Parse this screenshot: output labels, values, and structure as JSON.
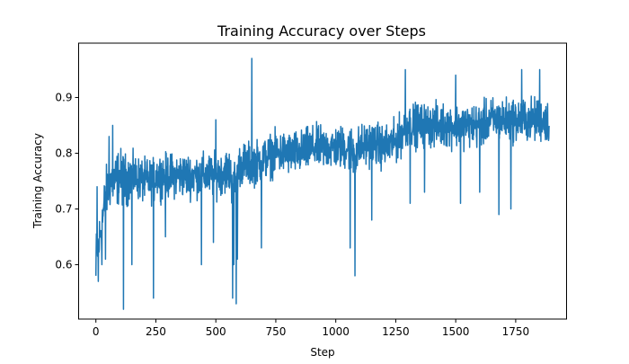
{
  "chart_data": {
    "type": "line",
    "title": "Training Accuracy over Steps",
    "xlabel": "Step",
    "ylabel": "Training Accuracy",
    "xlim": [
      -72,
      1962
    ],
    "ylim": [
      0.5025,
      0.9975
    ],
    "xticks": [
      0,
      250,
      500,
      750,
      1000,
      1250,
      1500,
      1750
    ],
    "yticks": [
      0.6,
      0.7,
      0.8,
      0.9
    ],
    "xtick_labels": [
      "0",
      "250",
      "500",
      "750",
      "1000",
      "1250",
      "1500",
      "1750"
    ],
    "ytick_labels": [
      "0.6",
      "0.7",
      "0.8",
      "0.9"
    ],
    "grid": false,
    "line_color": "#1f77b4",
    "series": [
      {
        "x": [
          0,
          10,
          20,
          30,
          40,
          50,
          60,
          80,
          100,
          120,
          150,
          200,
          240,
          250,
          300,
          350,
          400,
          450,
          500,
          550,
          580,
          590,
          600,
          650,
          700,
          750,
          800,
          850,
          900,
          950,
          1000,
          1050,
          1080,
          1100,
          1150,
          1200,
          1250,
          1300,
          1350,
          1400,
          1450,
          1500,
          1550,
          1600,
          1650,
          1700,
          1750,
          1800,
          1850,
          1880,
          1890
        ],
        "y": [
          0.62,
          0.63,
          0.66,
          0.69,
          0.72,
          0.74,
          0.75,
          0.75,
          0.76,
          0.75,
          0.76,
          0.75,
          0.75,
          0.76,
          0.76,
          0.76,
          0.76,
          0.76,
          0.76,
          0.77,
          0.74,
          0.76,
          0.78,
          0.78,
          0.79,
          0.8,
          0.8,
          0.8,
          0.81,
          0.81,
          0.81,
          0.81,
          0.8,
          0.81,
          0.82,
          0.81,
          0.82,
          0.85,
          0.85,
          0.85,
          0.85,
          0.85,
          0.85,
          0.85,
          0.86,
          0.86,
          0.86,
          0.86,
          0.86,
          0.86,
          0.85
        ],
        "noise_band": [
          0.04,
          0.05,
          0.05,
          0.05,
          0.05,
          0.05,
          0.05,
          0.05,
          0.05,
          0.05,
          0.04,
          0.04,
          0.04,
          0.04,
          0.04,
          0.04,
          0.04,
          0.04,
          0.04,
          0.04,
          0.05,
          0.04,
          0.04,
          0.04,
          0.04,
          0.04,
          0.04,
          0.04,
          0.04,
          0.04,
          0.04,
          0.04,
          0.05,
          0.04,
          0.04,
          0.04,
          0.04,
          0.04,
          0.04,
          0.04,
          0.04,
          0.04,
          0.04,
          0.04,
          0.04,
          0.04,
          0.04,
          0.04,
          0.04,
          0.04,
          0.04
        ],
        "spikes": [
          {
            "x": 0,
            "y": 0.58
          },
          {
            "x": 5,
            "y": 0.74
          },
          {
            "x": 10,
            "y": 0.57
          },
          {
            "x": 25,
            "y": 0.6
          },
          {
            "x": 40,
            "y": 0.61
          },
          {
            "x": 55,
            "y": 0.83
          },
          {
            "x": 70,
            "y": 0.85
          },
          {
            "x": 115,
            "y": 0.52
          },
          {
            "x": 150,
            "y": 0.6
          },
          {
            "x": 240,
            "y": 0.54
          },
          {
            "x": 290,
            "y": 0.65
          },
          {
            "x": 440,
            "y": 0.6
          },
          {
            "x": 490,
            "y": 0.64
          },
          {
            "x": 500,
            "y": 0.86
          },
          {
            "x": 570,
            "y": 0.54
          },
          {
            "x": 575,
            "y": 0.6
          },
          {
            "x": 585,
            "y": 0.53
          },
          {
            "x": 590,
            "y": 0.61
          },
          {
            "x": 650,
            "y": 0.97
          },
          {
            "x": 690,
            "y": 0.63
          },
          {
            "x": 1060,
            "y": 0.63
          },
          {
            "x": 1080,
            "y": 0.58
          },
          {
            "x": 1150,
            "y": 0.68
          },
          {
            "x": 1290,
            "y": 0.95
          },
          {
            "x": 1310,
            "y": 0.71
          },
          {
            "x": 1370,
            "y": 0.73
          },
          {
            "x": 1500,
            "y": 0.94
          },
          {
            "x": 1520,
            "y": 0.71
          },
          {
            "x": 1600,
            "y": 0.73
          },
          {
            "x": 1680,
            "y": 0.69
          },
          {
            "x": 1730,
            "y": 0.7
          },
          {
            "x": 1775,
            "y": 0.95
          },
          {
            "x": 1850,
            "y": 0.95
          }
        ]
      }
    ]
  }
}
